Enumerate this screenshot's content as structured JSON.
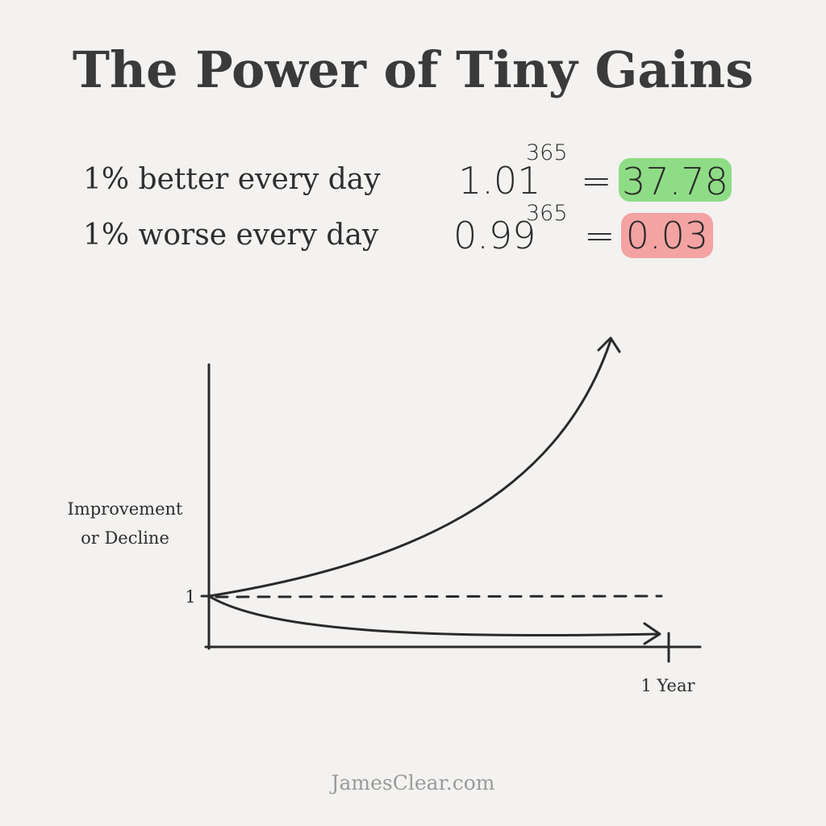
{
  "title": "The Power of Tiny Gains",
  "equations": [
    {
      "label": "1% better every day",
      "base": "1.01",
      "exponent": "365",
      "equals": "=",
      "result": "37.78"
    },
    {
      "label": "1% worse every day",
      "base": "0.99",
      "exponent": "365",
      "equals": "=",
      "result": "0.03"
    }
  ],
  "graph": {
    "y_axis_label": [
      "Improvement",
      "or Decline"
    ],
    "y_tick": "1",
    "x_tick": "1 Year"
  },
  "footer": "JamesClear.com"
}
